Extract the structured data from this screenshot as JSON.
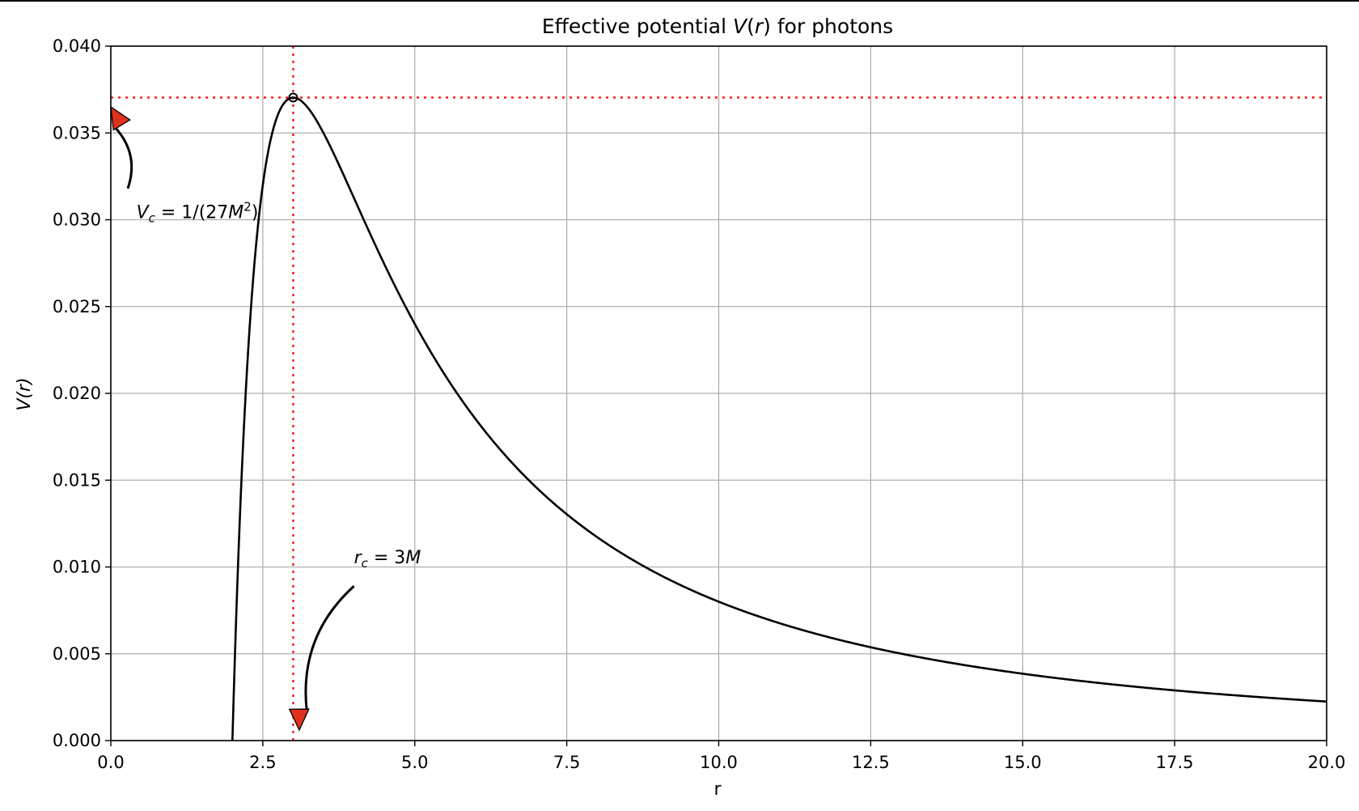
{
  "chart_data": {
    "type": "line",
    "title_parts": {
      "prefix": "Effective potential ",
      "v": "V",
      "open": "(",
      "r": "r",
      "close": ")",
      "suffix": " for photons"
    },
    "xlabel": "r",
    "ylabel": "V(r)",
    "xlim": [
      0,
      20
    ],
    "ylim": [
      0,
      0.04
    ],
    "x_ticks": [
      0.0,
      2.5,
      5.0,
      7.5,
      10.0,
      12.5,
      15.0,
      17.5,
      20.0
    ],
    "x_tick_labels": [
      "0.0",
      "2.5",
      "5.0",
      "7.5",
      "10.0",
      "12.5",
      "15.0",
      "17.5",
      "20.0"
    ],
    "y_ticks": [
      0.0,
      0.005,
      0.01,
      0.015,
      0.02,
      0.025,
      0.03,
      0.035,
      0.04
    ],
    "y_tick_labels": [
      "0.000",
      "0.005",
      "0.010",
      "0.015",
      "0.020",
      "0.025",
      "0.030",
      "0.035",
      "0.040"
    ],
    "grid": true,
    "series": [
      {
        "color": "#000000",
        "x": [
          2.0,
          2.1,
          2.2,
          2.3,
          2.4,
          2.5,
          2.6,
          2.7,
          2.8,
          2.9,
          3.0,
          3.2,
          3.4,
          3.6,
          3.8,
          4.0,
          4.5,
          5.0,
          5.5,
          6.0,
          6.5,
          7.0,
          7.5,
          8.0,
          9.0,
          10.0,
          11.0,
          12.0,
          13.0,
          14.0,
          15.0,
          16.0,
          17.0,
          18.0,
          19.0,
          20.0
        ],
        "y": [
          0.0,
          0.0108,
          0.01878,
          0.02466,
          0.02894,
          0.032,
          0.03414,
          0.03556,
          0.03644,
          0.0369,
          0.03704,
          0.03662,
          0.03562,
          0.03429,
          0.03281,
          0.03125,
          0.02743,
          0.024,
          0.02104,
          0.01852,
          0.01639,
          0.01458,
          0.01304,
          0.01172,
          0.0096,
          0.008,
          0.00676,
          0.00579,
          0.005,
          0.00437,
          0.00385,
          0.00342,
          0.00305,
          0.00274,
          0.00248,
          0.00225
        ]
      }
    ],
    "critical_point": {
      "x": 3.0,
      "y": 0.03704,
      "line_color": "#ff0000"
    },
    "annotations": [
      {
        "id": "vc",
        "text_parts": [
          "V",
          "c",
          " = 1/(27",
          "M",
          "2",
          ")"
        ],
        "text_x": 0.42,
        "text_y": 0.0301,
        "tail_x": 0.28,
        "tail_y": 0.0318,
        "head_x": 0.0,
        "head_y": 0.0365,
        "arrow_color": "#e0301e"
      },
      {
        "id": "rc",
        "text_parts": [
          "r",
          "c",
          " = 3",
          "M"
        ],
        "text_x": 4.0,
        "text_y": 0.0102,
        "tail_x": 4.0,
        "tail_y": 0.0089,
        "head_x": 3.1,
        "head_y": 0.0006,
        "arrow_color": "#e0301e"
      }
    ],
    "colors": {
      "grid": "#b0b0b0",
      "axis": "#000000",
      "ref_lines": "#ff0000",
      "arrow_fill": "#e0301e"
    }
  }
}
